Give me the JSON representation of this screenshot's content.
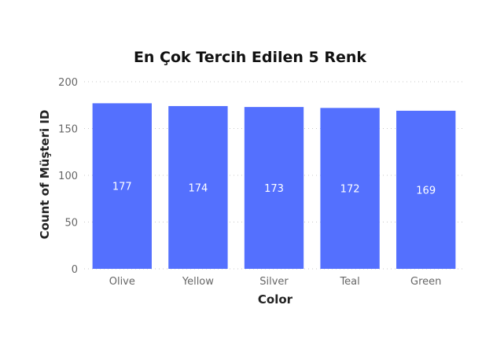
{
  "chart_data": {
    "type": "bar",
    "title": "En Çok Tercih Edilen 5 Renk",
    "xlabel": "Color",
    "ylabel": "Count of Müşteri ID",
    "categories": [
      "Olive",
      "Yellow",
      "Silver",
      "Teal",
      "Green"
    ],
    "values": [
      177,
      174,
      173,
      172,
      169
    ],
    "ylim": [
      0,
      200
    ],
    "yticks": [
      0,
      50,
      100,
      150,
      200
    ],
    "grid": true,
    "bar_color": "#5470fe",
    "legend": "none"
  }
}
